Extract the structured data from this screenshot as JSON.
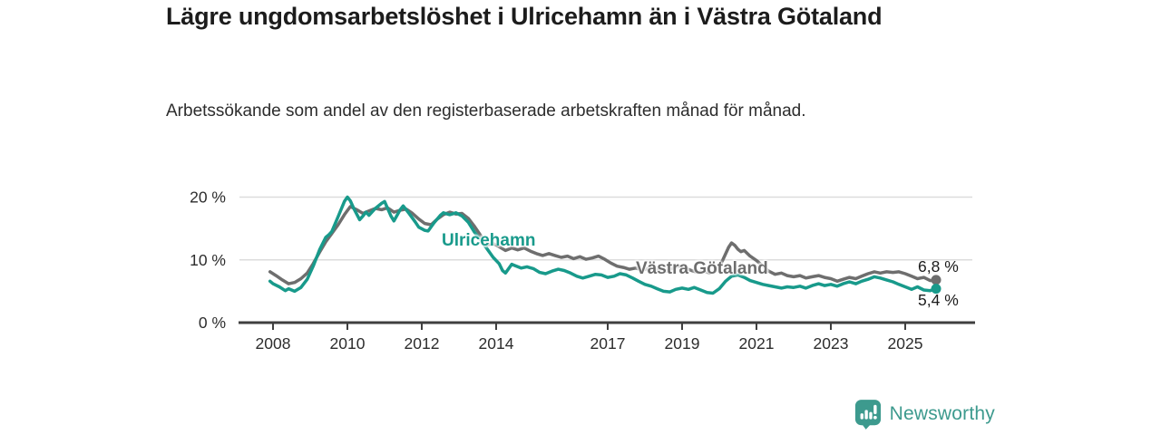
{
  "title": "Lägre ungdomsarbetslöshet i Ulricehamn än i Västra Götaland",
  "subtitle": "Arbetssökande som andel av den registerbaserade arbetskraften månad för månad.",
  "colors": {
    "teal": "#189a8b",
    "gray": "#6e6e6e",
    "grid": "#dcdcdc",
    "axis": "#3f3f3f",
    "tick_text": "#2d2d2d",
    "logo_teal": "#3d9a8e"
  },
  "logo": {
    "text": "Newsworthy",
    "icon": "newsworthy-barchart-pin"
  },
  "chart_data": {
    "type": "line",
    "unit": "%",
    "xlim": [
      2007.8,
      2026.1
    ],
    "ylim": [
      0,
      20
    ],
    "grid": "horizontal",
    "legend_position": "inline-labels",
    "y_ticks": [
      {
        "v": 0,
        "label": "0 %"
      },
      {
        "v": 10,
        "label": "10 %"
      },
      {
        "v": 20,
        "label": "20 %"
      }
    ],
    "x_ticks": [
      {
        "v": 2008,
        "label": "2008"
      },
      {
        "v": 2010,
        "label": "2010"
      },
      {
        "v": 2012,
        "label": "2012"
      },
      {
        "v": 2014,
        "label": "2014"
      },
      {
        "v": 2017,
        "label": "2017"
      },
      {
        "v": 2019,
        "label": "2019"
      },
      {
        "v": 2021,
        "label": "2021"
      },
      {
        "v": 2023,
        "label": "2023"
      },
      {
        "v": 2025,
        "label": "2025"
      }
    ],
    "series": [
      {
        "name": "Västra Götaland",
        "color": "#6e6e6e",
        "end_label": "6,8 %",
        "end_value": 6.8,
        "points": [
          [
            2007.92,
            8.1
          ],
          [
            2008.08,
            7.5
          ],
          [
            2008.25,
            6.8
          ],
          [
            2008.42,
            6.2
          ],
          [
            2008.58,
            6.4
          ],
          [
            2008.75,
            7.0
          ],
          [
            2008.92,
            7.9
          ],
          [
            2009.08,
            9.4
          ],
          [
            2009.25,
            11.2
          ],
          [
            2009.42,
            12.9
          ],
          [
            2009.58,
            14.2
          ],
          [
            2009.75,
            15.6
          ],
          [
            2009.92,
            17.2
          ],
          [
            2010.08,
            18.5
          ],
          [
            2010.25,
            18.0
          ],
          [
            2010.42,
            17.4
          ],
          [
            2010.58,
            17.8
          ],
          [
            2010.75,
            18.2
          ],
          [
            2010.92,
            18.0
          ],
          [
            2011.08,
            18.3
          ],
          [
            2011.25,
            17.6
          ],
          [
            2011.42,
            17.9
          ],
          [
            2011.58,
            18.1
          ],
          [
            2011.75,
            17.4
          ],
          [
            2011.92,
            16.5
          ],
          [
            2012.08,
            15.8
          ],
          [
            2012.25,
            15.6
          ],
          [
            2012.42,
            16.5
          ],
          [
            2012.58,
            17.2
          ],
          [
            2012.75,
            17.6
          ],
          [
            2012.92,
            17.3
          ],
          [
            2013.08,
            17.4
          ],
          [
            2013.25,
            16.6
          ],
          [
            2013.42,
            15.3
          ],
          [
            2013.58,
            13.9
          ],
          [
            2013.75,
            12.4
          ],
          [
            2013.92,
            12.6
          ],
          [
            2014.08,
            12.1
          ],
          [
            2014.25,
            11.5
          ],
          [
            2014.42,
            11.9
          ],
          [
            2014.58,
            11.6
          ],
          [
            2014.75,
            11.9
          ],
          [
            2014.92,
            11.4
          ],
          [
            2015.08,
            11.0
          ],
          [
            2015.25,
            10.7
          ],
          [
            2015.42,
            11.0
          ],
          [
            2015.58,
            10.7
          ],
          [
            2015.75,
            10.4
          ],
          [
            2015.92,
            10.6
          ],
          [
            2016.08,
            10.2
          ],
          [
            2016.25,
            10.5
          ],
          [
            2016.42,
            10.1
          ],
          [
            2016.58,
            10.3
          ],
          [
            2016.75,
            10.6
          ],
          [
            2016.92,
            10.1
          ],
          [
            2017.08,
            9.5
          ],
          [
            2017.25,
            9.0
          ],
          [
            2017.42,
            8.8
          ],
          [
            2017.58,
            8.5
          ],
          [
            2017.75,
            8.7
          ],
          [
            2017.92,
            8.4
          ],
          [
            2018.08,
            8.6
          ],
          [
            2018.25,
            8.3
          ],
          [
            2018.42,
            8.5
          ],
          [
            2018.58,
            8.2
          ],
          [
            2018.75,
            8.7
          ],
          [
            2018.92,
            9.0
          ],
          [
            2019.08,
            8.7
          ],
          [
            2019.25,
            8.3
          ],
          [
            2019.42,
            8.0
          ],
          [
            2019.58,
            8.2
          ],
          [
            2019.75,
            7.9
          ],
          [
            2019.92,
            8.3
          ],
          [
            2020.08,
            9.8
          ],
          [
            2020.25,
            12.0
          ],
          [
            2020.33,
            12.7
          ],
          [
            2020.42,
            12.3
          ],
          [
            2020.5,
            11.7
          ],
          [
            2020.58,
            11.3
          ],
          [
            2020.67,
            11.5
          ],
          [
            2020.83,
            10.6
          ],
          [
            2021.0,
            9.9
          ],
          [
            2021.17,
            9.0
          ],
          [
            2021.33,
            8.2
          ],
          [
            2021.5,
            7.7
          ],
          [
            2021.67,
            7.9
          ],
          [
            2021.83,
            7.5
          ],
          [
            2022.0,
            7.3
          ],
          [
            2022.17,
            7.5
          ],
          [
            2022.33,
            7.1
          ],
          [
            2022.5,
            7.3
          ],
          [
            2022.67,
            7.5
          ],
          [
            2022.83,
            7.2
          ],
          [
            2023.0,
            7.0
          ],
          [
            2023.17,
            6.6
          ],
          [
            2023.33,
            6.9
          ],
          [
            2023.5,
            7.2
          ],
          [
            2023.67,
            7.0
          ],
          [
            2023.83,
            7.4
          ],
          [
            2024.0,
            7.8
          ],
          [
            2024.17,
            8.1
          ],
          [
            2024.33,
            7.9
          ],
          [
            2024.5,
            8.1
          ],
          [
            2024.67,
            8.0
          ],
          [
            2024.83,
            8.1
          ],
          [
            2025.0,
            7.8
          ],
          [
            2025.17,
            7.4
          ],
          [
            2025.33,
            7.0
          ],
          [
            2025.5,
            7.2
          ],
          [
            2025.67,
            6.7
          ],
          [
            2025.83,
            6.8
          ]
        ]
      },
      {
        "name": "Ulricehamn",
        "color": "#189a8b",
        "end_label": "5,4 %",
        "end_value": 5.4,
        "points": [
          [
            2007.92,
            6.6
          ],
          [
            2008.0,
            6.2
          ],
          [
            2008.17,
            5.7
          ],
          [
            2008.33,
            5.1
          ],
          [
            2008.42,
            5.4
          ],
          [
            2008.58,
            5.0
          ],
          [
            2008.75,
            5.6
          ],
          [
            2008.92,
            6.9
          ],
          [
            2009.08,
            9.0
          ],
          [
            2009.25,
            11.6
          ],
          [
            2009.42,
            13.6
          ],
          [
            2009.5,
            14.0
          ],
          [
            2009.58,
            14.5
          ],
          [
            2009.75,
            16.9
          ],
          [
            2009.92,
            19.3
          ],
          [
            2010.0,
            20.0
          ],
          [
            2010.08,
            19.4
          ],
          [
            2010.17,
            18.2
          ],
          [
            2010.33,
            16.4
          ],
          [
            2010.42,
            17.0
          ],
          [
            2010.5,
            17.6
          ],
          [
            2010.58,
            17.1
          ],
          [
            2010.75,
            18.2
          ],
          [
            2010.92,
            19.0
          ],
          [
            2011.0,
            19.3
          ],
          [
            2011.17,
            17.0
          ],
          [
            2011.25,
            16.2
          ],
          [
            2011.42,
            18.0
          ],
          [
            2011.5,
            18.6
          ],
          [
            2011.67,
            17.3
          ],
          [
            2011.83,
            16.0
          ],
          [
            2011.92,
            15.2
          ],
          [
            2012.08,
            14.7
          ],
          [
            2012.17,
            14.6
          ],
          [
            2012.33,
            15.9
          ],
          [
            2012.5,
            17.1
          ],
          [
            2012.58,
            17.5
          ],
          [
            2012.75,
            17.2
          ],
          [
            2012.92,
            17.5
          ],
          [
            2013.08,
            17.0
          ],
          [
            2013.25,
            16.0
          ],
          [
            2013.42,
            14.4
          ],
          [
            2013.58,
            13.2
          ],
          [
            2013.75,
            11.8
          ],
          [
            2013.92,
            10.4
          ],
          [
            2014.08,
            9.4
          ],
          [
            2014.17,
            8.3
          ],
          [
            2014.25,
            7.9
          ],
          [
            2014.42,
            9.3
          ],
          [
            2014.5,
            9.1
          ],
          [
            2014.67,
            8.7
          ],
          [
            2014.83,
            8.9
          ],
          [
            2015.0,
            8.6
          ],
          [
            2015.17,
            8.0
          ],
          [
            2015.33,
            7.8
          ],
          [
            2015.5,
            8.2
          ],
          [
            2015.67,
            8.5
          ],
          [
            2015.83,
            8.3
          ],
          [
            2016.0,
            7.9
          ],
          [
            2016.17,
            7.4
          ],
          [
            2016.33,
            7.1
          ],
          [
            2016.5,
            7.4
          ],
          [
            2016.67,
            7.7
          ],
          [
            2016.83,
            7.6
          ],
          [
            2017.0,
            7.2
          ],
          [
            2017.17,
            7.4
          ],
          [
            2017.33,
            7.8
          ],
          [
            2017.5,
            7.6
          ],
          [
            2017.67,
            7.1
          ],
          [
            2017.83,
            6.6
          ],
          [
            2018.0,
            6.1
          ],
          [
            2018.17,
            5.8
          ],
          [
            2018.33,
            5.4
          ],
          [
            2018.5,
            5.0
          ],
          [
            2018.67,
            4.9
          ],
          [
            2018.83,
            5.3
          ],
          [
            2019.0,
            5.5
          ],
          [
            2019.17,
            5.3
          ],
          [
            2019.33,
            5.6
          ],
          [
            2019.5,
            5.2
          ],
          [
            2019.67,
            4.8
          ],
          [
            2019.83,
            4.7
          ],
          [
            2020.0,
            5.4
          ],
          [
            2020.17,
            6.6
          ],
          [
            2020.33,
            7.4
          ],
          [
            2020.5,
            7.6
          ],
          [
            2020.67,
            7.2
          ],
          [
            2020.83,
            6.7
          ],
          [
            2021.0,
            6.4
          ],
          [
            2021.17,
            6.1
          ],
          [
            2021.33,
            5.9
          ],
          [
            2021.5,
            5.7
          ],
          [
            2021.67,
            5.5
          ],
          [
            2021.83,
            5.7
          ],
          [
            2022.0,
            5.6
          ],
          [
            2022.17,
            5.8
          ],
          [
            2022.33,
            5.5
          ],
          [
            2022.5,
            5.9
          ],
          [
            2022.67,
            6.2
          ],
          [
            2022.83,
            5.9
          ],
          [
            2023.0,
            6.1
          ],
          [
            2023.17,
            5.8
          ],
          [
            2023.33,
            6.2
          ],
          [
            2023.5,
            6.5
          ],
          [
            2023.67,
            6.2
          ],
          [
            2023.83,
            6.6
          ],
          [
            2024.0,
            6.9
          ],
          [
            2024.17,
            7.3
          ],
          [
            2024.33,
            7.1
          ],
          [
            2024.5,
            6.8
          ],
          [
            2024.67,
            6.5
          ],
          [
            2024.83,
            6.1
          ],
          [
            2025.0,
            5.7
          ],
          [
            2025.17,
            5.3
          ],
          [
            2025.33,
            5.7
          ],
          [
            2025.5,
            5.2
          ],
          [
            2025.67,
            5.1
          ],
          [
            2025.83,
            5.4
          ]
        ]
      }
    ]
  }
}
